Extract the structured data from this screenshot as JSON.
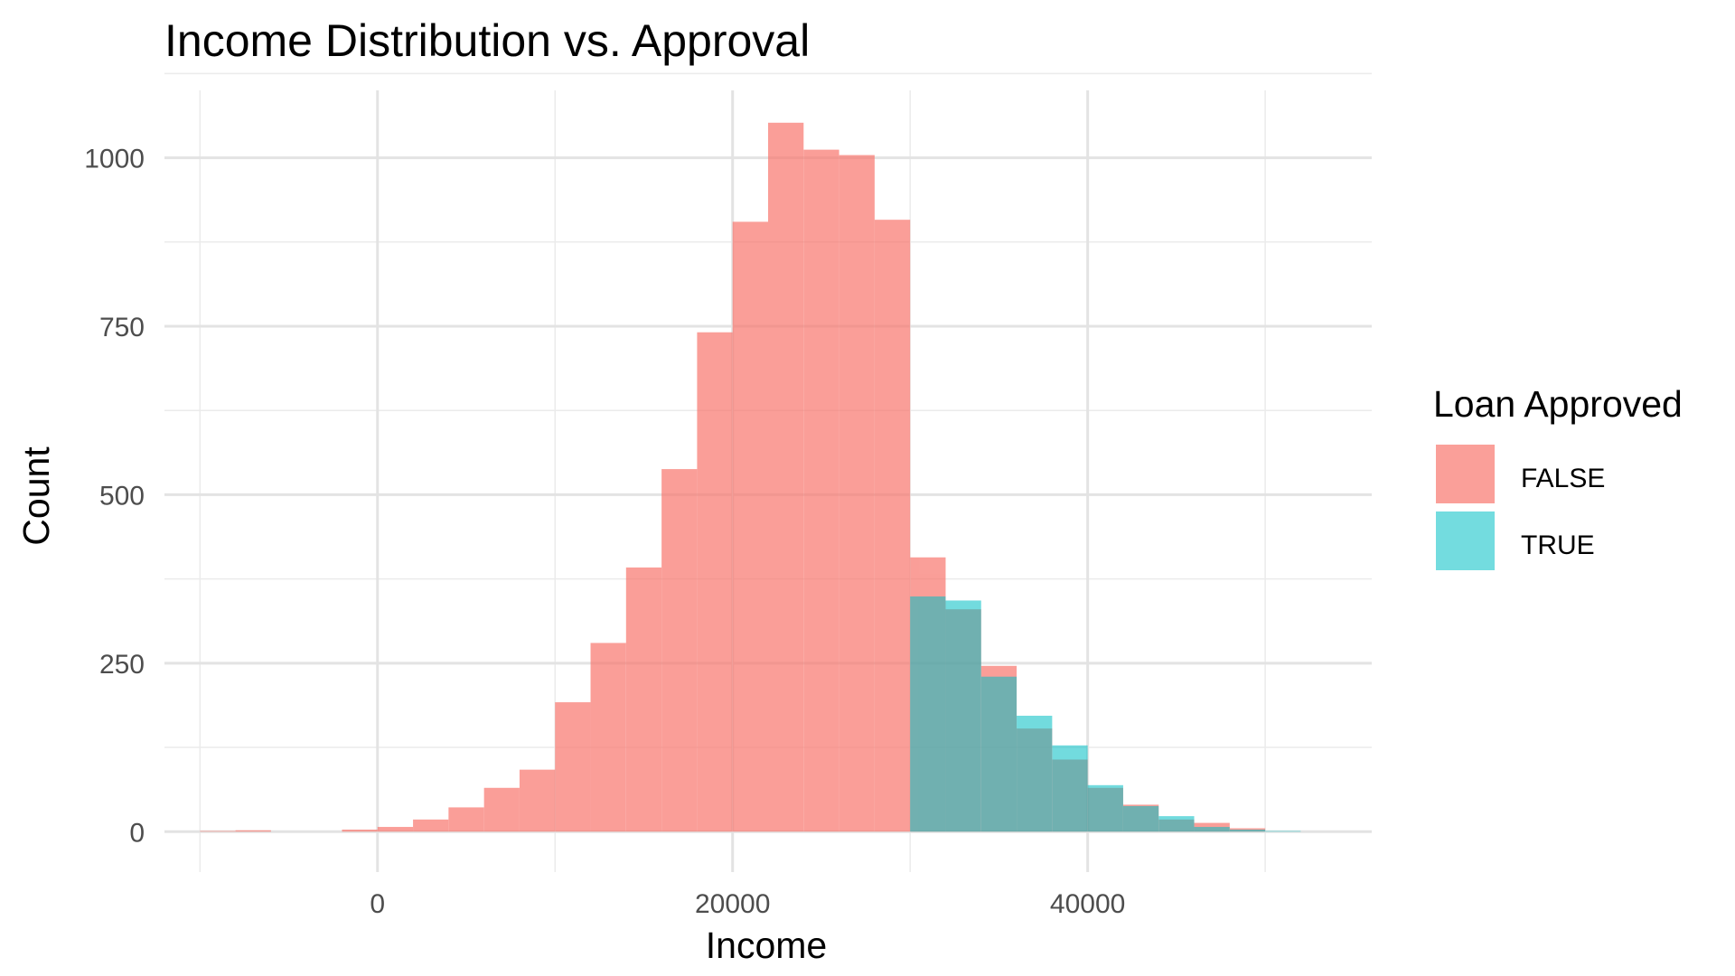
{
  "chart_data": {
    "type": "bar",
    "title": "Income Distribution vs. Approval",
    "xlabel": "Income",
    "ylabel": "Count",
    "xlim": [
      -12000,
      56000
    ],
    "ylim": [
      -60,
      1100
    ],
    "x_ticks": [
      0,
      20000,
      40000
    ],
    "x_tick_labels": [
      "0",
      "20000",
      "40000"
    ],
    "y_ticks": [
      0,
      250,
      500,
      750,
      1000
    ],
    "y_tick_labels": [
      "0",
      "250",
      "500",
      "750",
      "1000"
    ],
    "grid": true,
    "bin_width": 2000,
    "legend": {
      "title": "Loan Approved",
      "position": "right",
      "entries": [
        "FALSE",
        "TRUE"
      ]
    },
    "series": [
      {
        "name": "FALSE",
        "color": "#F8766D",
        "bins": [
          {
            "x0": -10000,
            "x1": -8000,
            "count": 1
          },
          {
            "x0": -8000,
            "x1": -6000,
            "count": 2
          },
          {
            "x0": -2000,
            "x1": 0,
            "count": 3
          },
          {
            "x0": 0,
            "x1": 2000,
            "count": 7
          },
          {
            "x0": 2000,
            "x1": 4000,
            "count": 18
          },
          {
            "x0": 4000,
            "x1": 6000,
            "count": 36
          },
          {
            "x0": 6000,
            "x1": 8000,
            "count": 65
          },
          {
            "x0": 8000,
            "x1": 10000,
            "count": 92
          },
          {
            "x0": 10000,
            "x1": 12000,
            "count": 192
          },
          {
            "x0": 12000,
            "x1": 14000,
            "count": 280
          },
          {
            "x0": 14000,
            "x1": 16000,
            "count": 392
          },
          {
            "x0": 16000,
            "x1": 18000,
            "count": 538
          },
          {
            "x0": 18000,
            "x1": 20000,
            "count": 741
          },
          {
            "x0": 20000,
            "x1": 22000,
            "count": 905
          },
          {
            "x0": 22000,
            "x1": 24000,
            "count": 1052
          },
          {
            "x0": 24000,
            "x1": 26000,
            "count": 1012
          },
          {
            "x0": 26000,
            "x1": 28000,
            "count": 1004
          },
          {
            "x0": 28000,
            "x1": 30000,
            "count": 908
          },
          {
            "x0": 30000,
            "x1": 32000,
            "count": 407
          },
          {
            "x0": 32000,
            "x1": 34000,
            "count": 330
          },
          {
            "x0": 34000,
            "x1": 36000,
            "count": 246
          },
          {
            "x0": 36000,
            "x1": 38000,
            "count": 153
          },
          {
            "x0": 38000,
            "x1": 40000,
            "count": 107
          },
          {
            "x0": 40000,
            "x1": 42000,
            "count": 65
          },
          {
            "x0": 42000,
            "x1": 44000,
            "count": 40
          },
          {
            "x0": 44000,
            "x1": 46000,
            "count": 18
          },
          {
            "x0": 46000,
            "x1": 48000,
            "count": 13
          },
          {
            "x0": 48000,
            "x1": 50000,
            "count": 5
          }
        ]
      },
      {
        "name": "TRUE",
        "color": "#00BFC4",
        "bins": [
          {
            "x0": 30000,
            "x1": 32000,
            "count": 349
          },
          {
            "x0": 32000,
            "x1": 34000,
            "count": 343
          },
          {
            "x0": 34000,
            "x1": 36000,
            "count": 230
          },
          {
            "x0": 36000,
            "x1": 38000,
            "count": 172
          },
          {
            "x0": 38000,
            "x1": 40000,
            "count": 128
          },
          {
            "x0": 40000,
            "x1": 42000,
            "count": 69
          },
          {
            "x0": 42000,
            "x1": 44000,
            "count": 38
          },
          {
            "x0": 44000,
            "x1": 46000,
            "count": 23
          },
          {
            "x0": 46000,
            "x1": 48000,
            "count": 7
          },
          {
            "x0": 48000,
            "x1": 50000,
            "count": 3
          },
          {
            "x0": 50000,
            "x1": 52000,
            "count": 1
          }
        ]
      }
    ]
  }
}
